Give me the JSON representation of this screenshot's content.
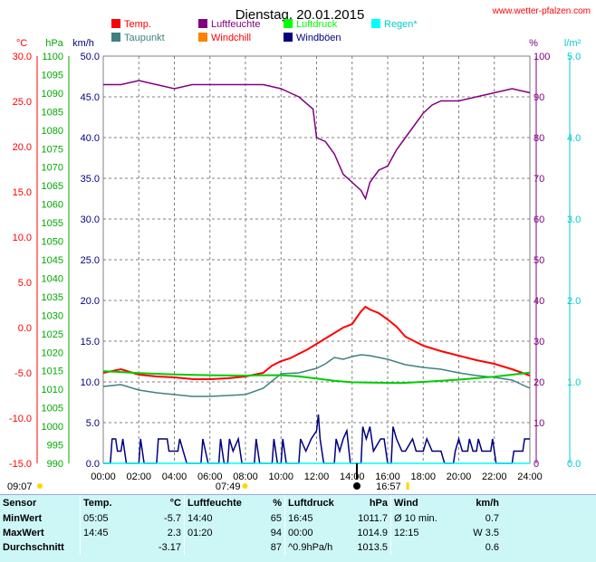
{
  "chart_data": {
    "type": "line",
    "title": "Dienstag, 20.01.2015",
    "source": "www.wetter-pfalzen.com",
    "axis_units": {
      "temp": "°C",
      "pressure": "hPa",
      "wind": "km/h",
      "humidity": "%",
      "rain": "l/m²"
    },
    "axes": {
      "temp": {
        "min": -15,
        "max": 30,
        "ticks": [
          "30.0",
          "25.0",
          "20.0",
          "15.0",
          "10.0",
          "5.0",
          "0.0",
          "-5.0",
          "-10.0",
          "-15.0"
        ]
      },
      "pressure": {
        "min": 990,
        "max": 1100,
        "ticks": [
          "1100",
          "1095",
          "1090",
          "1085",
          "1080",
          "1075",
          "1070",
          "1065",
          "1060",
          "1055",
          "1050",
          "1045",
          "1040",
          "1035",
          "1030",
          "1025",
          "1020",
          "1015",
          "1010",
          "1005",
          "1000",
          "995",
          "990"
        ]
      },
      "wind": {
        "min": 0,
        "max": 50,
        "ticks": [
          "50.0",
          "45.0",
          "40.0",
          "35.0",
          "30.0",
          "25.0",
          "20.0",
          "15.0",
          "10.0",
          "5.0",
          "0.0"
        ]
      },
      "humidity": {
        "min": 0,
        "max": 100,
        "ticks": [
          "100",
          "90",
          "80",
          "70",
          "60",
          "50",
          "40",
          "30",
          "20",
          "10",
          "0"
        ]
      },
      "rain": {
        "min": 0,
        "max": 5,
        "ticks": [
          "5.0",
          "4.0",
          "3.0",
          "2.0",
          "1.0",
          "0.0"
        ]
      },
      "x": {
        "min": 0,
        "max": 24,
        "ticks": [
          "00:00",
          "02:00",
          "04:00",
          "06:00",
          "08:00",
          "10:00",
          "12:00",
          "14:00",
          "16:00",
          "18:00",
          "20:00",
          "22:00",
          "24:00"
        ]
      }
    },
    "legend": [
      {
        "name": "Temp.",
        "color": "#ff0000"
      },
      {
        "name": "Taupunkt",
        "color": "#408080"
      },
      {
        "name": "Luftfeuchte",
        "color": "#800080"
      },
      {
        "name": "Windchill",
        "color": "#ff8000"
      },
      {
        "name": "Luftdruck",
        "color": "#00ff00"
      },
      {
        "name": "Windböen",
        "color": "#000080"
      },
      {
        "name": "Regen*",
        "color": "#00ffff"
      }
    ],
    "sun_events": [
      {
        "label": "09:07",
        "type": "moonrise"
      },
      {
        "label": "07:49",
        "type": "sunrise",
        "hour": 7.82
      },
      {
        "label": "16:57",
        "type": "sunset",
        "hour": 16.95
      }
    ],
    "series": [
      {
        "name": "Temp.",
        "axis": "temp",
        "color": "#ff0000",
        "points": [
          [
            0,
            -5.0
          ],
          [
            0.5,
            -4.8
          ],
          [
            1,
            -4.6
          ],
          [
            1.5,
            -4.9
          ],
          [
            2,
            -5.2
          ],
          [
            3,
            -5.4
          ],
          [
            4,
            -5.5
          ],
          [
            5.08,
            -5.7
          ],
          [
            6,
            -5.7
          ],
          [
            7,
            -5.6
          ],
          [
            8,
            -5.4
          ],
          [
            9,
            -5.0
          ],
          [
            9.5,
            -4.2
          ],
          [
            10,
            -3.7
          ],
          [
            10.5,
            -3.4
          ],
          [
            11,
            -2.9
          ],
          [
            11.5,
            -2.4
          ],
          [
            12,
            -1.8
          ],
          [
            12.5,
            -1.2
          ],
          [
            13,
            -0.6
          ],
          [
            13.5,
            0.0
          ],
          [
            14,
            0.4
          ],
          [
            14.5,
            1.8
          ],
          [
            14.75,
            2.3
          ],
          [
            15,
            2.0
          ],
          [
            15.5,
            1.6
          ],
          [
            16,
            0.9
          ],
          [
            16.5,
            0.1
          ],
          [
            17,
            -1.0
          ],
          [
            17.5,
            -1.5
          ],
          [
            18,
            -2.0
          ],
          [
            18.5,
            -2.3
          ],
          [
            19,
            -2.6
          ],
          [
            20,
            -3.1
          ],
          [
            21,
            -3.6
          ],
          [
            22,
            -4.0
          ],
          [
            23,
            -4.6
          ],
          [
            24,
            -5.3
          ]
        ]
      },
      {
        "name": "Taupunkt",
        "axis": "temp",
        "color": "#408080",
        "points": [
          [
            0,
            -6.5
          ],
          [
            1,
            -6.3
          ],
          [
            2,
            -6.9
          ],
          [
            3,
            -7.2
          ],
          [
            4,
            -7.4
          ],
          [
            5,
            -7.6
          ],
          [
            6,
            -7.6
          ],
          [
            7,
            -7.5
          ],
          [
            8,
            -7.4
          ],
          [
            9,
            -6.7
          ],
          [
            10,
            -5.1
          ],
          [
            11,
            -5.0
          ],
          [
            12,
            -4.5
          ],
          [
            12.5,
            -4.0
          ],
          [
            13,
            -3.3
          ],
          [
            13.5,
            -3.5
          ],
          [
            14,
            -3.2
          ],
          [
            14.5,
            -3.0
          ],
          [
            15,
            -3.1
          ],
          [
            16,
            -3.5
          ],
          [
            17,
            -4.1
          ],
          [
            18,
            -4.4
          ],
          [
            19,
            -4.6
          ],
          [
            20,
            -5.0
          ],
          [
            21,
            -5.3
          ],
          [
            22,
            -5.5
          ],
          [
            23,
            -5.8
          ],
          [
            24,
            -6.7
          ]
        ]
      },
      {
        "name": "Luftfeuchte",
        "axis": "humidity",
        "color": "#800080",
        "points": [
          [
            0,
            93
          ],
          [
            1,
            93
          ],
          [
            2,
            94
          ],
          [
            3,
            93
          ],
          [
            4,
            92
          ],
          [
            5,
            93
          ],
          [
            6,
            93
          ],
          [
            7,
            93
          ],
          [
            8,
            93
          ],
          [
            9,
            93
          ],
          [
            10,
            92
          ],
          [
            10.5,
            91
          ],
          [
            11,
            90
          ],
          [
            11.8,
            87
          ],
          [
            12,
            80
          ],
          [
            12.5,
            79
          ],
          [
            13,
            76
          ],
          [
            13.5,
            71
          ],
          [
            14,
            69
          ],
          [
            14.5,
            67
          ],
          [
            14.75,
            65
          ],
          [
            15,
            69
          ],
          [
            15.5,
            72
          ],
          [
            16,
            73
          ],
          [
            16.5,
            77
          ],
          [
            17,
            80
          ],
          [
            17.5,
            83
          ],
          [
            18,
            86
          ],
          [
            18.5,
            88
          ],
          [
            19,
            89
          ],
          [
            20,
            89
          ],
          [
            21,
            90
          ],
          [
            22,
            91
          ],
          [
            23,
            92
          ],
          [
            24,
            91
          ]
        ]
      },
      {
        "name": "Luftdruck",
        "axis": "pressure",
        "color": "#00cc00",
        "points": [
          [
            0,
            1014.9
          ],
          [
            2,
            1014.4
          ],
          [
            4,
            1014.0
          ],
          [
            6,
            1013.8
          ],
          [
            8,
            1013.7
          ],
          [
            9,
            1013.8
          ],
          [
            10,
            1013.8
          ],
          [
            11,
            1013.5
          ],
          [
            12,
            1012.9
          ],
          [
            13,
            1012.3
          ],
          [
            14,
            1011.9
          ],
          [
            15,
            1011.8
          ],
          [
            16.75,
            1011.7
          ],
          [
            18,
            1012.0
          ],
          [
            20,
            1012.6
          ],
          [
            22,
            1013.4
          ],
          [
            24,
            1014.5
          ]
        ]
      },
      {
        "name": "Windböen",
        "axis": "wind",
        "color": "#000080",
        "points": [
          [
            0,
            0
          ],
          [
            0.4,
            0
          ],
          [
            0.5,
            3
          ],
          [
            0.7,
            3
          ],
          [
            0.8,
            1.5
          ],
          [
            1,
            1.5
          ],
          [
            1.1,
            3
          ],
          [
            1.3,
            0
          ],
          [
            2,
            0
          ],
          [
            2.1,
            3
          ],
          [
            2.3,
            0
          ],
          [
            3,
            0
          ],
          [
            3.1,
            3
          ],
          [
            3.6,
            3
          ],
          [
            3.7,
            1.5
          ],
          [
            4.2,
            1.5
          ],
          [
            4.3,
            3
          ],
          [
            4.7,
            0
          ],
          [
            5.5,
            0
          ],
          [
            5.6,
            3
          ],
          [
            5.9,
            0
          ],
          [
            6.5,
            0
          ],
          [
            6.6,
            3
          ],
          [
            6.8,
            0
          ],
          [
            7,
            0
          ],
          [
            7.1,
            3
          ],
          [
            7.3,
            1.5
          ],
          [
            7.6,
            3
          ],
          [
            7.8,
            0
          ],
          [
            8.5,
            0
          ],
          [
            8.6,
            3
          ],
          [
            8.8,
            0
          ],
          [
            9.5,
            0
          ],
          [
            9.6,
            3
          ],
          [
            9.8,
            0
          ],
          [
            10,
            0
          ],
          [
            10.1,
            3
          ],
          [
            10.3,
            0
          ],
          [
            11,
            0
          ],
          [
            11.1,
            3
          ],
          [
            11.4,
            1.5
          ],
          [
            11.7,
            3
          ],
          [
            12,
            4
          ],
          [
            12.1,
            6
          ],
          [
            12.2,
            3
          ],
          [
            12.4,
            0
          ],
          [
            13,
            0
          ],
          [
            13.1,
            3
          ],
          [
            13.3,
            1.5
          ],
          [
            13.5,
            3
          ],
          [
            13.7,
            4
          ],
          [
            13.9,
            0
          ],
          [
            14.5,
            0
          ],
          [
            14.6,
            4.5
          ],
          [
            14.8,
            3
          ],
          [
            15,
            4.5
          ],
          [
            15.2,
            1.5
          ],
          [
            15.6,
            3
          ],
          [
            15.8,
            3
          ],
          [
            16,
            0
          ],
          [
            16.2,
            0
          ],
          [
            16.3,
            4.5
          ],
          [
            16.5,
            3
          ],
          [
            16.8,
            1.5
          ],
          [
            17,
            1.5
          ],
          [
            17.4,
            3
          ],
          [
            17.6,
            1.5
          ],
          [
            18,
            1.5
          ],
          [
            18.2,
            3
          ],
          [
            18.5,
            1.5
          ],
          [
            19,
            1.5
          ],
          [
            19.2,
            0
          ],
          [
            19.7,
            0
          ],
          [
            19.8,
            1.5
          ],
          [
            20,
            3
          ],
          [
            20.2,
            1.5
          ],
          [
            20.5,
            1.5
          ],
          [
            20.6,
            3
          ],
          [
            20.8,
            1.5
          ],
          [
            21,
            1.5
          ],
          [
            21.1,
            3
          ],
          [
            21.3,
            1.5
          ],
          [
            21.8,
            1.5
          ],
          [
            21.9,
            3
          ],
          [
            22.1,
            0
          ],
          [
            23,
            0
          ],
          [
            23.1,
            1.5
          ],
          [
            23.6,
            1.5
          ],
          [
            23.7,
            3
          ],
          [
            24,
            3
          ]
        ]
      },
      {
        "name": "Regen*",
        "axis": "rain",
        "color": "#00ffff",
        "points": [
          [
            0,
            0
          ],
          [
            24,
            0
          ]
        ]
      }
    ]
  },
  "stats": {
    "headers": {
      "sensor": "Sensor",
      "temp": "Temp.",
      "temp_unit": "°C",
      "hum": "Luftfeuchte",
      "hum_unit": "%",
      "press": "Luftdruck",
      "press_unit": "hPa",
      "wind": "Wind",
      "wind_unit": "km/h"
    },
    "rows": [
      {
        "label": "MinWert",
        "t_time": "05:05",
        "t_val": "-5.7",
        "h_time": "14:40",
        "h_val": "65",
        "p_time": "16:45",
        "p_val": "1011.7",
        "w_time": "Ø 10 min.",
        "w_val": "0.7"
      },
      {
        "label": "MaxWert",
        "t_time": "14:45",
        "t_val": "2.3",
        "h_time": "01:20",
        "h_val": "94",
        "p_time": "00:00",
        "p_val": "1014.9",
        "w_time": "12:15",
        "w_val": "W 3.5"
      },
      {
        "label": "Durchschnitt",
        "t_time": "",
        "t_val": "-3.17",
        "h_time": "",
        "h_val": "87",
        "p_time": "^0.9hPa/h",
        "p_val": "1013.5",
        "w_time": "",
        "w_val": "0.6"
      }
    ]
  }
}
